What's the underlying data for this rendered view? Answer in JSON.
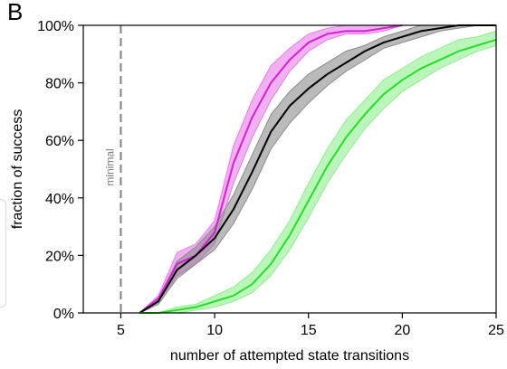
{
  "panel_label": "B",
  "chart_data": {
    "type": "line",
    "title": "",
    "xlabel": "number of attempted state transitions",
    "ylabel": "fraction of success",
    "xlim": [
      3,
      25
    ],
    "ylim": [
      0,
      100
    ],
    "x_ticks": [
      5,
      10,
      15,
      20,
      25
    ],
    "y_ticks": [
      0,
      20,
      40,
      60,
      80,
      100
    ],
    "y_tick_labels": [
      "0%",
      "20%",
      "40%",
      "60%",
      "80%",
      "100%"
    ],
    "grid": false,
    "legend": "none",
    "annotations": [
      {
        "text": "minimal",
        "x": 5,
        "style": "dashed-vertical-line",
        "color": "#808080"
      }
    ],
    "series": [
      {
        "color": "#d51fd5",
        "band_color": "#e87be8",
        "x": [
          6,
          7,
          8,
          9,
          10,
          11,
          12,
          13,
          14,
          15,
          16,
          17,
          18,
          19,
          20
        ],
        "values": [
          0,
          5,
          17,
          20,
          28,
          52,
          68,
          80,
          88,
          94,
          97,
          98,
          98,
          99,
          100
        ],
        "lower": [
          0,
          4,
          13,
          17,
          24,
          45,
          61,
          74,
          84,
          91,
          95,
          97,
          97,
          98,
          100
        ],
        "upper": [
          0,
          6,
          21,
          24,
          32,
          58,
          74,
          86,
          92,
          97,
          99,
          100,
          100,
          100,
          100
        ]
      },
      {
        "color": "#000000",
        "band_color": "#8c8c8c",
        "x": [
          6,
          7,
          8,
          9,
          10,
          11,
          12,
          13,
          14,
          15,
          16,
          17,
          18,
          19,
          20,
          21,
          22,
          23,
          24,
          25
        ],
        "values": [
          0,
          4,
          15,
          20,
          26,
          36,
          49,
          63,
          72,
          78,
          83,
          87,
          91,
          94,
          96,
          98,
          99,
          100,
          100,
          100
        ],
        "lower": [
          0,
          3,
          12,
          17,
          22,
          31,
          43,
          57,
          66,
          73,
          79,
          84,
          88,
          92,
          94,
          96,
          98,
          99,
          100,
          100
        ],
        "upper": [
          0,
          5,
          18,
          23,
          30,
          41,
          55,
          69,
          77,
          83,
          87,
          91,
          93,
          96,
          98,
          100,
          100,
          100,
          100,
          100
        ]
      },
      {
        "color": "#22e022",
        "band_color": "#8fef8f",
        "x": [
          6,
          7,
          8,
          9,
          10,
          11,
          12,
          13,
          14,
          15,
          16,
          17,
          18,
          19,
          20,
          21,
          22,
          23,
          24,
          25
        ],
        "values": [
          0,
          0,
          1,
          2,
          4,
          6,
          10,
          17,
          27,
          39,
          51,
          61,
          69,
          76,
          81,
          85,
          88,
          91,
          93,
          95
        ],
        "lower": [
          0,
          0,
          0,
          1,
          2,
          4,
          7,
          13,
          22,
          33,
          45,
          55,
          64,
          71,
          77,
          81,
          85,
          88,
          91,
          93
        ],
        "upper": [
          0,
          0,
          2,
          3,
          6,
          9,
          14,
          22,
          32,
          45,
          57,
          67,
          74,
          81,
          85,
          89,
          92,
          95,
          96,
          98
        ]
      }
    ]
  }
}
